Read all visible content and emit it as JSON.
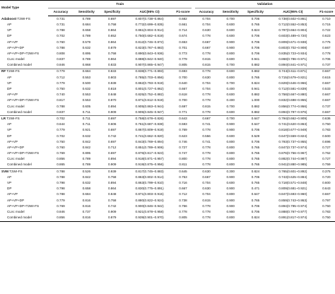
{
  "header": {
    "model_type": "Model Type",
    "train": "Train",
    "validation": "Validation",
    "columns": [
      "Accuracy",
      "Sensitivity",
      "Specificity",
      "AUC(95% CI)",
      "F1-score"
    ]
  },
  "groups": [
    {
      "method": "Adaboost",
      "rows": [
        {
          "name": "T2WI-FS",
          "train": [
            "0.731",
            "0.789",
            "0.697",
            "0.807(0.738–0.864)",
            "0.682"
          ],
          "val": [
            "0.704",
            "0.700",
            "0.706",
            "0.738(0.602–0.861)",
            "0.710"
          ]
        },
        {
          "name": "AP",
          "train": [
            "0.731",
            "0.684",
            "0.758",
            "0.772(0.699–0.835)",
            "0.661"
          ],
          "val": [
            "0.704",
            "0.600",
            "0.765",
            "0.712(0.552–0.853)",
            "0.715"
          ]
        },
        {
          "name": "VP",
          "train": [
            "0.788",
            "0.658",
            "0.864",
            "0.861(0.804–0.914)",
            "0.714"
          ],
          "val": [
            "0.630",
            "0.600",
            "0.824",
            "0.797(0.664–0.904)",
            "0.722"
          ]
        },
        {
          "name": "DP",
          "train": [
            "0.702",
            "0.789",
            "0.652",
            "0.750(0.682–0.819)",
            "0.674"
          ],
          "val": [
            "0.778",
            "0.600",
            "0.706",
            "0.603(0.489–0.720)",
            "0.623"
          ]
        },
        {
          "name": "AP+VP",
          "train": [
            "0.760",
            "0.579",
            "0.864",
            "0.812(0.746–0.872)",
            "0.653"
          ],
          "val": [
            "0.667",
            "0.900",
            "0.706",
            "0.809(0.671–0.938)",
            "0.775"
          ]
        },
        {
          "name": "AP+VP+DP",
          "train": [
            "0.788",
            "0.632",
            "0.879",
            "0.823(0.767–0.883)",
            "0.701"
          ],
          "val": [
            "0.667",
            "0.900",
            "0.706",
            "0.803(0.702–0.908)",
            "0.667"
          ]
        },
        {
          "name": "AP+VP+DP+T2WI-FS",
          "train": [
            "0.808",
            "0.895",
            "0.758",
            "0.890(0.843–0.936)",
            "0.773"
          ],
          "val": [
            "0.778",
            "0.800",
            "0.706",
            "0.835(0.723–0.934)",
            "0.778"
          ]
        },
        {
          "name": "CLnc model",
          "train": [
            "0.837",
            "0.789",
            "0.864",
            "0.888(0.842–0.940)",
            "0.779"
          ],
          "val": [
            "0.815",
            "0.600",
            "0.941",
            "0.868(0.786–0.971)",
            "0.706"
          ]
        },
        {
          "name": "Combined model",
          "train": [
            "0.846",
            "0.868",
            "0.833",
            "0.907(0.865–0.947)",
            "0.805"
          ],
          "val": [
            "0.815",
            "0.700",
            "0.882",
            "0.894(0.841–0.971)",
            "0.737"
          ]
        }
      ]
    },
    {
      "method": "RF",
      "rows": [
        {
          "name": "T2WI-FS",
          "train": [
            "0.779",
            "0.684",
            "0.833",
            "0.838(0.771–0.893)",
            "0.693"
          ],
          "val": [
            "0.778",
            "0.600",
            "0.882",
            "0.744(0.611–0.871)",
            "0.667"
          ]
        },
        {
          "name": "AP",
          "train": [
            "0.712",
            "0.553",
            "0.803",
            "0.785(0.703–0.856)",
            "0.700"
          ],
          "val": [
            "0.630",
            "0.800",
            "0.765",
            "0.715(0.679–0.821)",
            "0.615"
          ]
        },
        {
          "name": "VP",
          "train": [
            "0.779",
            "0.500",
            "0.939",
            "0.862(0.793–0.919)",
            "0.640"
          ],
          "val": [
            "0.704",
            "0.700",
            "0.824",
            "0.829(0.646–0.966)",
            "0.667"
          ]
        },
        {
          "name": "DP",
          "train": [
            "0.750",
            "0.632",
            "0.818",
            "0.801(0.727–0.862)",
            "0.667"
          ],
          "val": [
            "0.704",
            "0.400",
            "0.941",
            "0.712(0.581–0.839)",
            "0.533"
          ]
        },
        {
          "name": "AP+VP",
          "train": [
            "0.740",
            "0.553",
            "0.848",
            "0.825(0.752–0.882)",
            "0.618"
          ],
          "val": [
            "0.778",
            "0.600",
            "0.882",
            "0.758(0.667–0.880)",
            "0.667"
          ]
        },
        {
          "name": "AP+VP+DP+T2WI-FS",
          "train": [
            "0.817",
            "0.553",
            "0.970",
            "0.871(0.812–0.919)",
            "0.700"
          ],
          "val": [
            "0.778",
            "0.400",
            "1.000",
            "0.832(0.698–0.955)",
            "0.667"
          ]
        },
        {
          "name": "CLnc model",
          "train": [
            "0.788",
            "0.605",
            "0.894",
            "0.905(0.863–0.944)",
            "0.697"
          ],
          "val": [
            "0.815",
            "0.700",
            "0.882",
            "0.856(0.774–0.956)",
            "0.737"
          ]
        },
        {
          "name": "Combined model",
          "train": [
            "0.837",
            "0.711",
            "0.909",
            "0.905(0.845–0.947)",
            "0.771"
          ],
          "val": [
            "0.778",
            "0.600",
            "0.882",
            "0.894(0.797–0.976)",
            "0.667"
          ]
        }
      ]
    },
    {
      "method": "LR",
      "rows": [
        {
          "name": "T2WI-FS",
          "train": [
            "0.702",
            "0.711",
            "0.697",
            "0.758(0.678–0.826)",
            "0.643"
          ],
          "val": [
            "0.667",
            "0.700",
            "0.647",
            "0.794(0.662–0.909)",
            "0.636"
          ]
        },
        {
          "name": "AP",
          "train": [
            "0.644",
            "0.711",
            "0.606",
            "0.761(0.687–0.838)",
            "0.593"
          ],
          "val": [
            "0.741",
            "0.900",
            "0.647",
            "0.741(0.620–0.863)",
            "0.750"
          ]
        },
        {
          "name": "VP",
          "train": [
            "0.779",
            "0.921",
            "0.697",
            "0.867(0.809–0.919)",
            "0.769"
          ],
          "val": [
            "0.778",
            "0.900",
            "0.706",
            "0.818(0.677–0.949)",
            "0.783"
          ]
        },
        {
          "name": "DP",
          "train": [
            "0.702",
            "0.632",
            "0.742",
            "0.741(0.662–0.820)",
            "0.623"
          ],
          "val": [
            "0.556",
            "0.600",
            "0.529",
            "0.647(0.559–0.824)",
            "0.500"
          ]
        },
        {
          "name": "AP+VP",
          "train": [
            "0.750",
            "0.842",
            "0.697",
            "0.843(0.769–0.894)",
            "0.746"
          ],
          "val": [
            "0.741",
            "0.800",
            "0.706",
            "0.793(0.737–0.955)",
            "0.696"
          ]
        },
        {
          "name": "AP+VP+DP",
          "train": [
            "0.760",
            "0.842",
            "0.712",
            "0.851(0.789–0.906)",
            "0.727"
          ],
          "val": [
            "0.778",
            "0.800",
            "0.765",
            "0.847(0.737–0.974)",
            "0.727"
          ]
        },
        {
          "name": "AP+VP+DP+T2WI-FS",
          "train": [
            "0.769",
            "0.895",
            "0.697",
            "0.876(0.817–0.923)",
            "0.747"
          ],
          "val": [
            "0.778",
            "0.800",
            "0.765",
            "0.876(0.756–0.967)",
            "0.762"
          ]
        },
        {
          "name": "CLnc model",
          "train": [
            "0.856",
            "0.789",
            "0.894",
            "0.918(0.871–0.957)",
            "0.800"
          ],
          "val": [
            "0.778",
            "0.800",
            "0.765",
            "0.882(0.744–0.987)",
            "0.727"
          ]
        },
        {
          "name": "Combined model",
          "train": [
            "0.865",
            "0.789",
            "0.909",
            "0.919(0.875–0.956)",
            "0.811"
          ],
          "val": [
            "0.778",
            "0.800",
            "0.765",
            "0.941(0.880–0.985)",
            "0.759"
          ]
        }
      ]
    },
    {
      "method": "SVM",
      "rows": [
        {
          "name": "T2WI-FS",
          "train": [
            "0.788",
            "0.526",
            "0.939",
            "0.817(0.745–0.883)",
            "0.645"
          ],
          "val": [
            "0.630",
            "0.300",
            "0.824",
            "0.765(0.601–0.892)",
            "0.375"
          ]
        },
        {
          "name": "AP",
          "train": [
            "0.788",
            "0.842",
            "0.758",
            "0.863(0.802–0.914)",
            "0.753"
          ],
          "val": [
            "0.667",
            "0.900",
            "0.706",
            "0.743(0.625–0.884)",
            "0.720"
          ]
        },
        {
          "name": "VP",
          "train": [
            "0.798",
            "0.632",
            "0.894",
            "0.863(0.799–0.910)",
            "0.716"
          ],
          "val": [
            "0.704",
            "0.600",
            "0.765",
            "0.718(0.571–0.848)",
            "0.600"
          ]
        },
        {
          "name": "DP",
          "train": [
            "0.798",
            "0.658",
            "0.864",
            "0.830(0.775–0.891)",
            "0.667"
          ],
          "val": [
            "0.630",
            "0.900",
            "0.471",
            "0.809(0.681–0.921)",
            "0.643"
          ]
        },
        {
          "name": "AP+VP",
          "train": [
            "0.788",
            "0.684",
            "0.848",
            "0.871(0.803–0.915)",
            "0.712"
          ],
          "val": [
            "0.704",
            "0.800",
            "0.647",
            "0.847(0.693–0.960)",
            "0.667"
          ]
        },
        {
          "name": "AP+VP+DP",
          "train": [
            "0.779",
            "0.816",
            "0.758",
            "0.880(0.822–0.924)",
            "0.738"
          ],
          "val": [
            "0.815",
            "0.900",
            "0.765",
            "0.859(0.743–0.953)",
            "0.797"
          ]
        },
        {
          "name": "AP+VP+DP+T2WI-FS",
          "train": [
            "0.769",
            "0.816",
            "0.742",
            "0.900(0.846–0.942)",
            "0.756"
          ],
          "val": [
            "0.778",
            "0.900",
            "0.706",
            "0.894(0.795–0.974)",
            "0.750"
          ]
        },
        {
          "name": "CLnc model",
          "train": [
            "0.846",
            "0.737",
            "0.909",
            "0.921(0.878–0.958)",
            "0.778"
          ],
          "val": [
            "0.778",
            "0.900",
            "0.706",
            "0.888(0.767–0.977)",
            "0.783"
          ]
        },
        {
          "name": "Combined model",
          "train": [
            "0.856",
            "0.816",
            "0.879",
            "0.939(0.901–0.970)",
            "0.805"
          ],
          "val": [
            "0.778",
            "0.800",
            "0.824",
            "0.891(0.817–0.974)",
            "0.750"
          ]
        }
      ]
    }
  ]
}
